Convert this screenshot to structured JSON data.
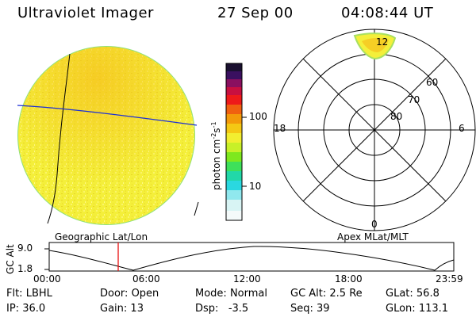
{
  "header": {
    "instrument": "Ultraviolet Imager",
    "date": "27 Sep 00",
    "time": "04:08:44 UT"
  },
  "colorbar": {
    "unit_label": "photon cm",
    "unit_exp1": "-2",
    "unit_mid": "s",
    "unit_exp2": "-1",
    "ticks": [
      "100",
      "10"
    ]
  },
  "polar_plot": {
    "mlt_labels": {
      "top": "12",
      "left": "18",
      "right": "6",
      "bottom": "0"
    },
    "mlat_labels": [
      "60",
      "70",
      "80"
    ]
  },
  "altitude_panel": {
    "ylabel": "GC Alt",
    "y_ticks": [
      "9.0",
      "1.8"
    ],
    "left_title": "Geographic Lat/Lon",
    "right_title": "Apex MLat/MLT",
    "x_ticks": [
      "00:00",
      "06:00",
      "12:00",
      "18:00",
      "23:59"
    ]
  },
  "status": {
    "flt": {
      "label": "Flt:",
      "value": "LBHL"
    },
    "door": {
      "label": "Door:",
      "value": "Open"
    },
    "mode": {
      "label": "Mode:",
      "value": "Normal"
    },
    "gcalt": {
      "label": "GC Alt:",
      "value": "2.5 Re"
    },
    "glat": {
      "label": "GLat:",
      "value": "56.8"
    },
    "ip": {
      "label": "IP:",
      "value": "36.0"
    },
    "gain": {
      "label": "Gain:",
      "value": "13"
    },
    "dsp": {
      "label": "Dsp:",
      "value": "-3.5"
    },
    "seq": {
      "label": "Seq:",
      "value": "39"
    },
    "glon": {
      "label": "GLon:",
      "value": "113.1"
    }
  }
}
